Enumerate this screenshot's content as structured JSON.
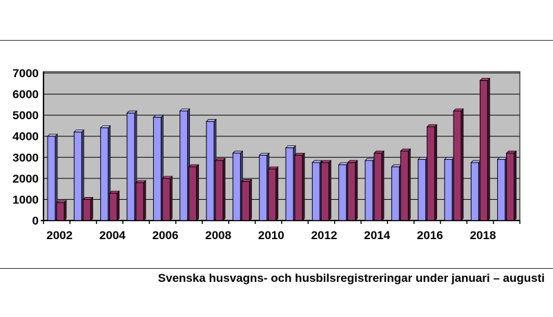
{
  "caption": "Svenska husvagns- och husbilsregistreringar under januari – augusti",
  "chart_data": {
    "type": "bar",
    "title": "",
    "xlabel": "",
    "ylabel": "",
    "ylim": [
      0,
      7000
    ],
    "y_ticks": [
      "0",
      "1000",
      "2000",
      "3000",
      "4000",
      "5000",
      "6000",
      "7000"
    ],
    "categories": [
      "2002",
      "2003",
      "2004",
      "2005",
      "2006",
      "2007",
      "2008",
      "2009",
      "2010",
      "2011",
      "2012",
      "2013",
      "2014",
      "2015",
      "2016",
      "2017",
      "2018",
      "2019"
    ],
    "x_tick_labels": [
      "2002",
      "",
      "2004",
      "",
      "2006",
      "",
      "2008",
      "",
      "2010",
      "",
      "2012",
      "",
      "2014",
      "",
      "2016",
      "",
      "2018",
      ""
    ],
    "grid": true,
    "legend": "none",
    "series": [
      {
        "color": "#9999ff",
        "values": [
          4000,
          4200,
          4400,
          5100,
          4900,
          5200,
          4700,
          3200,
          3100,
          3450,
          2750,
          2650,
          2850,
          2550,
          2900,
          2900,
          2750,
          2900
        ]
      },
      {
        "color": "#993366",
        "values": [
          850,
          1000,
          1300,
          1800,
          2000,
          2550,
          2850,
          1850,
          2450,
          3100,
          2750,
          2750,
          3200,
          3300,
          4450,
          5200,
          6650,
          3200
        ]
      }
    ],
    "colors": {
      "plot_background": "#c0c0c0",
      "gridline": "#000000"
    }
  }
}
